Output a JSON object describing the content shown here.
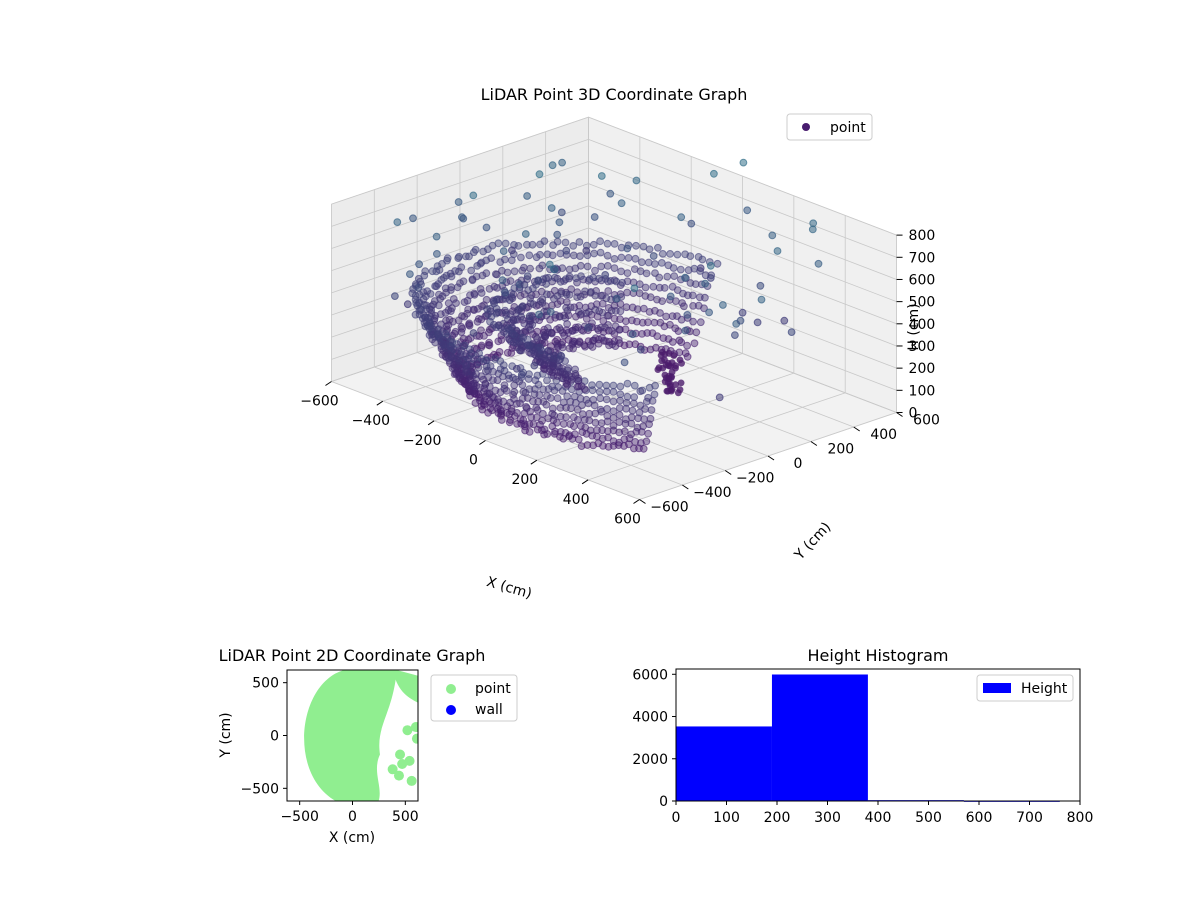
{
  "chart_data": [
    {
      "type": "scatter3d",
      "title": "LiDAR Point 3D Coordinate Graph",
      "xlabel": "X (cm)",
      "ylabel": "Y (cm)",
      "zlabel": "H (cm)",
      "xlim": [
        -600,
        600
      ],
      "ylim": [
        -600,
        600
      ],
      "zlim": [
        0,
        800
      ],
      "zinverted": true,
      "x_ticks": [
        "−600",
        "−400",
        "−200",
        "0",
        "200",
        "400",
        "600"
      ],
      "y_ticks": [
        "−600",
        "−400",
        "−200",
        "0",
        "200",
        "400",
        "600"
      ],
      "z_ticks": [
        "0",
        "100",
        "200",
        "300",
        "400",
        "500",
        "600",
        "700",
        "800"
      ],
      "legend": {
        "placement": "top-right",
        "entries": [
          {
            "name": "point",
            "color": "#481c6e"
          }
        ]
      },
      "grid": true,
      "colormap": "viridis (dark purple at top, blue-grey toward bottom)",
      "series": [
        {
          "name": "point",
          "description_shape": "dense semicircular ring of points around origin, radius ~600, heights 0-450, sparse outliers down to ~1000"
        }
      ]
    },
    {
      "type": "scatter",
      "title": "LiDAR Point 2D Coordinate Graph",
      "xlabel": "X (cm)",
      "ylabel": "Y (cm)",
      "xlim": [
        -620,
        620
      ],
      "ylim": [
        -620,
        620
      ],
      "x_ticks": [
        "−500",
        "0",
        "500"
      ],
      "y_ticks": [
        "500",
        "0",
        "−500"
      ],
      "legend": {
        "placement": "outside-right",
        "entries": [
          {
            "name": "point",
            "color": "#90ee90"
          },
          {
            "name": "wall",
            "color": "#0000ff"
          }
        ]
      },
      "series": [
        {
          "name": "point",
          "color": "#90ee90",
          "points": [
            [
              520,
              50
            ],
            [
              600,
              80
            ],
            [
              610,
              -30
            ],
            [
              450,
              -180
            ],
            [
              540,
              -240
            ],
            [
              470,
              -270
            ],
            [
              380,
              -320
            ],
            [
              560,
              -430
            ],
            [
              440,
              -380
            ]
          ]
        },
        {
          "name": "wall",
          "color": "#0000ff",
          "points": []
        }
      ]
    },
    {
      "type": "bar",
      "title": "Height Histogram",
      "xlabel": "",
      "ylabel": "",
      "xlim": [
        0,
        800
      ],
      "ylim": [
        0,
        6250
      ],
      "x_ticks": [
        "0",
        "100",
        "200",
        "300",
        "400",
        "500",
        "600",
        "700",
        "800"
      ],
      "y_ticks": [
        "0",
        "2000",
        "4000",
        "6000"
      ],
      "legend": {
        "placement": "top-right",
        "entries": [
          {
            "name": "Height",
            "color": "#0000ff"
          }
        ]
      },
      "bin_edges": [
        0,
        190,
        380,
        570,
        760
      ],
      "values": [
        3530,
        5990,
        40,
        8
      ],
      "series": [
        {
          "name": "Height",
          "color": "#0000ff"
        }
      ]
    }
  ]
}
